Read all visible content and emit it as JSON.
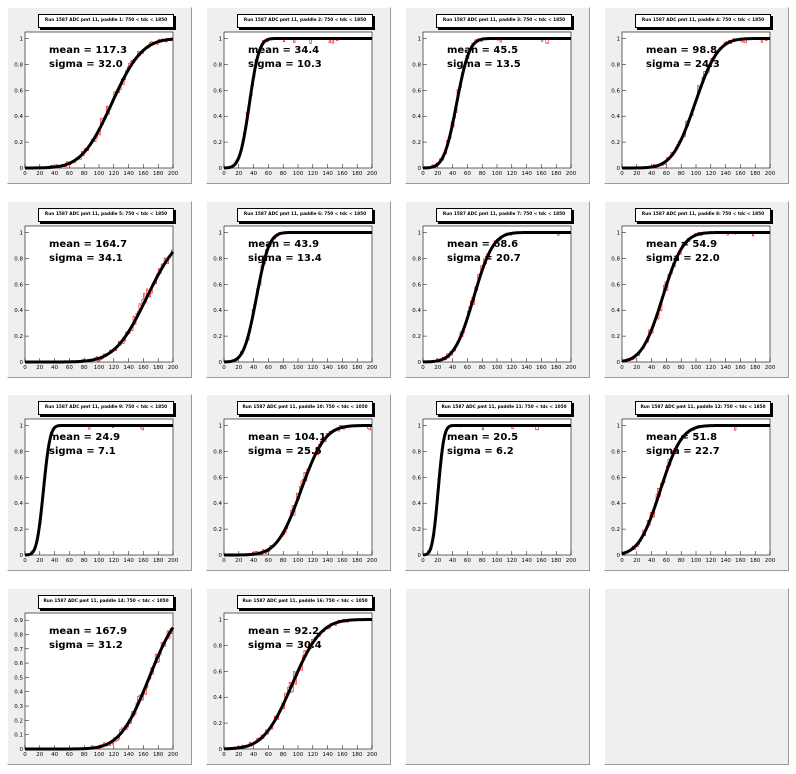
{
  "chart_data": [
    {
      "type": "line",
      "title": "Run 1587 ADC pmt 11, paddle 1: 750 < tdc < 1850",
      "mean": 117.3,
      "sigma": 32.0,
      "mean_label": "mean = 117.3",
      "sigma_label": "sigma = 32.0",
      "xlim": [
        0,
        200
      ],
      "ylim": [
        0,
        1
      ],
      "xticks": [
        "0",
        "20",
        "40",
        "60",
        "80",
        "100",
        "120",
        "140",
        "160",
        "180",
        "200"
      ],
      "yticks": [
        "0",
        "0.2",
        "0.4",
        "0.6",
        "0.8",
        "1"
      ]
    },
    {
      "type": "line",
      "title": "Run 1587 ADC pmt 11, paddle 2: 750 < tdc < 1850",
      "mean": 34.4,
      "sigma": 10.3,
      "mean_label": "mean = 34.4",
      "sigma_label": "sigma = 10.3",
      "xlim": [
        0,
        200
      ],
      "ylim": [
        0,
        1
      ],
      "xticks": [
        "0",
        "20",
        "40",
        "60",
        "80",
        "100",
        "120",
        "140",
        "160",
        "180",
        "200"
      ],
      "yticks": [
        "0",
        "0.2",
        "0.4",
        "0.6",
        "0.8",
        "1"
      ]
    },
    {
      "type": "line",
      "title": "Run 1587 ADC pmt 11, paddle 3: 750 < tdc < 1850",
      "mean": 45.5,
      "sigma": 13.5,
      "mean_label": "mean = 45.5",
      "sigma_label": "sigma = 13.5",
      "xlim": [
        0,
        200
      ],
      "ylim": [
        0,
        1
      ],
      "xticks": [
        "0",
        "20",
        "40",
        "60",
        "80",
        "100",
        "120",
        "140",
        "160",
        "180",
        "200"
      ],
      "yticks": [
        "0",
        "0.2",
        "0.4",
        "0.6",
        "0.8",
        "1"
      ]
    },
    {
      "type": "line",
      "title": "Run 1587 ADC pmt 11, paddle 4: 750 < tdc < 1850",
      "mean": 98.8,
      "sigma": 24.3,
      "mean_label": "mean = 98.8",
      "sigma_label": "sigma = 24.3",
      "xlim": [
        0,
        200
      ],
      "ylim": [
        0,
        1
      ],
      "xticks": [
        "0",
        "20",
        "40",
        "60",
        "80",
        "100",
        "120",
        "140",
        "160",
        "180",
        "200"
      ],
      "yticks": [
        "0",
        "0.2",
        "0.4",
        "0.6",
        "0.8",
        "1"
      ]
    },
    {
      "type": "line",
      "title": "Run 1587 ADC pmt 11, paddle 5: 750 < tdc < 1850",
      "mean": 164.7,
      "sigma": 34.1,
      "mean_label": "mean = 164.7",
      "sigma_label": "sigma = 34.1",
      "xlim": [
        0,
        200
      ],
      "ylim": [
        0,
        1
      ],
      "xticks": [
        "0",
        "20",
        "40",
        "60",
        "80",
        "100",
        "120",
        "140",
        "160",
        "180",
        "200"
      ],
      "yticks": [
        "0",
        "0.2",
        "0.4",
        "0.6",
        "0.8",
        "1"
      ]
    },
    {
      "type": "line",
      "title": "Run 1587 ADC pmt 11, paddle 6: 750 < tdc < 1850",
      "mean": 43.9,
      "sigma": 13.4,
      "mean_label": "mean = 43.9",
      "sigma_label": "sigma = 13.4",
      "xlim": [
        0,
        200
      ],
      "ylim": [
        0,
        1
      ],
      "xticks": [
        "0",
        "20",
        "40",
        "60",
        "80",
        "100",
        "120",
        "140",
        "160",
        "180",
        "200"
      ],
      "yticks": [
        "0",
        "0.2",
        "0.4",
        "0.6",
        "0.8",
        "1"
      ]
    },
    {
      "type": "line",
      "title": "Run 1587 ADC pmt 11, paddle 7: 750 < tdc < 1850",
      "mean": 68.6,
      "sigma": 20.7,
      "mean_label": "mean = 68.6",
      "sigma_label": "sigma = 20.7",
      "xlim": [
        0,
        200
      ],
      "ylim": [
        0,
        1
      ],
      "xticks": [
        "0",
        "20",
        "40",
        "60",
        "80",
        "100",
        "120",
        "140",
        "160",
        "180",
        "200"
      ],
      "yticks": [
        "0",
        "0.2",
        "0.4",
        "0.6",
        "0.8",
        "1"
      ]
    },
    {
      "type": "line",
      "title": "Run 1587 ADC pmt 11, paddle 8: 750 < tdc < 1850",
      "mean": 54.9,
      "sigma": 22.0,
      "mean_label": "mean = 54.9",
      "sigma_label": "sigma = 22.0",
      "xlim": [
        0,
        200
      ],
      "ylim": [
        0,
        1
      ],
      "xticks": [
        "0",
        "20",
        "40",
        "60",
        "80",
        "100",
        "120",
        "140",
        "160",
        "180",
        "200"
      ],
      "yticks": [
        "0",
        "0.2",
        "0.4",
        "0.6",
        "0.8",
        "1"
      ]
    },
    {
      "type": "line",
      "title": "Run 1587 ADC pmt 11, paddle 9: 750 < tdc < 1850",
      "mean": 24.9,
      "sigma": 7.1,
      "mean_label": "mean = 24.9",
      "sigma_label": "sigma = 7.1",
      "xlim": [
        0,
        200
      ],
      "ylim": [
        0,
        1
      ],
      "xticks": [
        "0",
        "20",
        "40",
        "60",
        "80",
        "100",
        "120",
        "140",
        "160",
        "180",
        "200"
      ],
      "yticks": [
        "0",
        "0.2",
        "0.4",
        "0.6",
        "0.8",
        "1"
      ]
    },
    {
      "type": "line",
      "title": "Run 1587 ADC pmt 11, paddle 10: 750 < tdc < 1050",
      "mean": 104.1,
      "sigma": 25.5,
      "mean_label": "mean = 104.1",
      "sigma_label": "sigma = 25.5",
      "xlim": [
        0,
        200
      ],
      "ylim": [
        0,
        1
      ],
      "xticks": [
        "0",
        "20",
        "40",
        "60",
        "80",
        "100",
        "120",
        "140",
        "160",
        "180",
        "200"
      ],
      "yticks": [
        "0",
        "0.2",
        "0.4",
        "0.6",
        "0.8",
        "1"
      ]
    },
    {
      "type": "line",
      "title": "Run 1587 ADC pmt 11, paddle 11: 750 < tdc < 1050",
      "mean": 20.5,
      "sigma": 6.2,
      "mean_label": "mean = 20.5",
      "sigma_label": "sigma = 6.2",
      "xlim": [
        0,
        200
      ],
      "ylim": [
        0,
        1
      ],
      "xticks": [
        "0",
        "20",
        "40",
        "60",
        "80",
        "100",
        "120",
        "140",
        "160",
        "180",
        "200"
      ],
      "yticks": [
        "0",
        "0.2",
        "0.4",
        "0.6",
        "0.8",
        "1"
      ]
    },
    {
      "type": "line",
      "title": "Run 1587 ADC pmt 11, paddle 12: 750 < tdc < 1850",
      "mean": 51.8,
      "sigma": 22.7,
      "mean_label": "mean = 51.8",
      "sigma_label": "sigma = 22.7",
      "xlim": [
        0,
        200
      ],
      "ylim": [
        0,
        1
      ],
      "xticks": [
        "0",
        "20",
        "40",
        "60",
        "80",
        "100",
        "120",
        "140",
        "160",
        "180",
        "200"
      ],
      "yticks": [
        "0",
        "0.2",
        "0.4",
        "0.6",
        "0.8",
        "1"
      ]
    },
    {
      "type": "line",
      "title": "Run 1587 ADC pmt 11, paddle 14: 750 < tdc < 1050",
      "mean": 167.9,
      "sigma": 31.2,
      "mean_label": "mean = 167.9",
      "sigma_label": "sigma = 31.2",
      "xlim": [
        0,
        200
      ],
      "ylim": [
        0,
        1
      ],
      "xticks": [
        "0",
        "20",
        "40",
        "60",
        "80",
        "100",
        "120",
        "140",
        "160",
        "180",
        "200"
      ],
      "yticks": [
        "0",
        "0.1",
        "0.2",
        "0.3",
        "0.4",
        "0.5",
        "0.6",
        "0.7",
        "0.8",
        "0.9"
      ]
    },
    {
      "type": "line",
      "title": "Run 1587 ADC pmt 11, paddle 16: 750 < tdc < 1050",
      "mean": 92.2,
      "sigma": 30.4,
      "mean_label": "mean = 92.2",
      "sigma_label": "sigma = 30.4",
      "xlim": [
        0,
        200
      ],
      "ylim": [
        0,
        1
      ],
      "xticks": [
        "0",
        "20",
        "40",
        "60",
        "80",
        "100",
        "120",
        "140",
        "160",
        "180",
        "200"
      ],
      "yticks": [
        "0",
        "0.2",
        "0.4",
        "0.6",
        "0.8",
        "1"
      ]
    }
  ],
  "colors": {
    "fit": "#000000",
    "histogram": "#ff0000",
    "pad": "#efefef",
    "frame": "#ffffff"
  }
}
